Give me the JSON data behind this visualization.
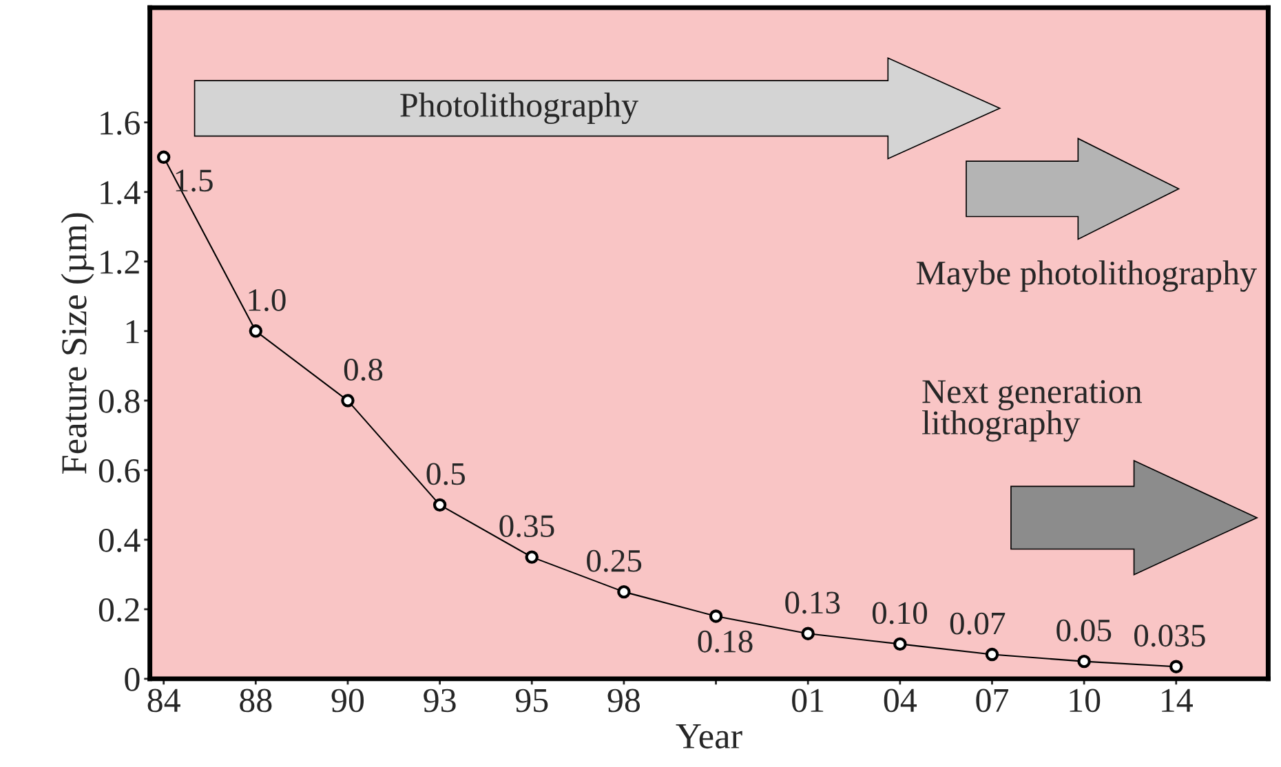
{
  "chart_data": {
    "type": "line",
    "xlabel": "Year",
    "ylabel": "Feature Size (µm)",
    "categories": [
      "84",
      "88",
      "90",
      "93",
      "95",
      "98",
      null,
      "01",
      "04",
      "07",
      "10",
      "14"
    ],
    "series": [
      {
        "color": "#000000",
        "values": [
          1.5,
          1.0,
          0.8,
          0.5,
          0.35,
          0.25,
          0.18,
          0.13,
          0.1,
          0.07,
          0.05,
          0.035
        ],
        "value_labels": [
          "1.5",
          "1.0",
          "0.8",
          "0.5",
          "0.35",
          "0.25",
          "0.18",
          "0.13",
          "0.10",
          "0.07",
          "0.05",
          "0.035"
        ]
      }
    ],
    "ylim": [
      0,
      1.93
    ],
    "yticks": [
      0,
      0.2,
      0.4,
      0.6,
      0.8,
      1,
      1.2,
      1.4,
      1.6
    ],
    "marker": "circle",
    "line_style": "solid",
    "grid": false,
    "legend": false,
    "annotations": [
      "Photolithography",
      "Maybe photolithography",
      "Next generation\nlithography"
    ]
  }
}
